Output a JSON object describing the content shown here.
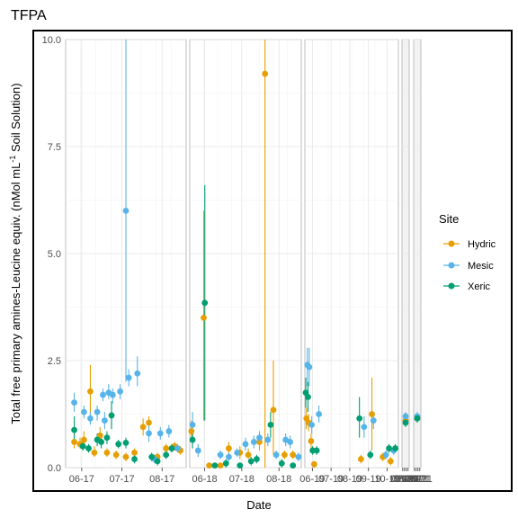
{
  "chart_data": {
    "type": "scatter",
    "title": "TFPA",
    "xlabel": "Date",
    "ylabel_main": "Total free primary amines-Leucine equiv. (nMol mL",
    "ylabel_sup": "-1",
    "ylabel_tail": " Soil Solution)",
    "ylim": [
      0,
      10
    ],
    "y_ticks": [
      "0.0",
      "2.5",
      "5.0",
      "7.5",
      "10.0"
    ],
    "grid": true,
    "legend": {
      "title": "Site",
      "placement": "right",
      "entries": [
        "Hydric",
        "Mesic",
        "Xeric"
      ]
    },
    "colors": {
      "Hydric": "#E69F00",
      "Mesic": "#56B4E9",
      "Xeric": "#009E73"
    },
    "panels": [
      {
        "x_ticks": [
          "06-17",
          "07-17",
          "08-17"
        ],
        "points": [
          {
            "series": "Hydric",
            "x": 0.15,
            "y": 0.6,
            "lo": 0.45,
            "hi": 0.8
          },
          {
            "series": "Hydric",
            "x": 0.25,
            "y": 0.55,
            "lo": 0.45,
            "hi": 0.7
          },
          {
            "series": "Hydric",
            "x": 0.32,
            "y": 0.65,
            "lo": 0.5,
            "hi": 0.85
          },
          {
            "series": "Hydric",
            "x": 0.43,
            "y": 1.78,
            "lo": 1.1,
            "hi": 2.4
          },
          {
            "series": "Hydric",
            "x": 0.5,
            "y": 0.35,
            "lo": 0.25,
            "hi": 0.5
          },
          {
            "series": "Hydric",
            "x": 0.6,
            "y": 0.75,
            "lo": 0.55,
            "hi": 0.95
          },
          {
            "series": "Hydric",
            "x": 0.72,
            "y": 0.35,
            "lo": 0.25,
            "hi": 0.45
          },
          {
            "series": "Hydric",
            "x": 0.88,
            "y": 0.3,
            "lo": 0.2,
            "hi": 0.4
          },
          {
            "series": "Hydric",
            "x": 1.05,
            "y": 0.25,
            "lo": 0.15,
            "hi": 0.35
          },
          {
            "series": "Hydric",
            "x": 1.2,
            "y": 0.35,
            "lo": 0.25,
            "hi": 0.45
          },
          {
            "series": "Hydric",
            "x": 1.35,
            "y": 0.95,
            "lo": 0.75,
            "hi": 1.15
          },
          {
            "series": "Hydric",
            "x": 1.45,
            "y": 1.05,
            "lo": 0.9,
            "hi": 1.2
          },
          {
            "series": "Hydric",
            "x": 1.6,
            "y": 0.25,
            "lo": 0.15,
            "hi": 0.35
          },
          {
            "series": "Hydric",
            "x": 1.75,
            "y": 0.45,
            "lo": 0.35,
            "hi": 0.55
          },
          {
            "series": "Hydric",
            "x": 1.9,
            "y": 0.5,
            "lo": 0.4,
            "hi": 0.6
          },
          {
            "series": "Hydric",
            "x": 2.0,
            "y": 0.4,
            "lo": 0.3,
            "hi": 0.5
          },
          {
            "series": "Mesic",
            "x": 0.15,
            "y": 1.52,
            "lo": 1.3,
            "hi": 1.75
          },
          {
            "series": "Mesic",
            "x": 0.32,
            "y": 1.3,
            "lo": 1.15,
            "hi": 1.45
          },
          {
            "series": "Mesic",
            "x": 0.43,
            "y": 1.15,
            "lo": 1.0,
            "hi": 1.3
          },
          {
            "series": "Mesic",
            "x": 0.55,
            "y": 1.3,
            "lo": 1.1,
            "hi": 1.45
          },
          {
            "series": "Mesic",
            "x": 0.65,
            "y": 1.7,
            "lo": 1.55,
            "hi": 1.85
          },
          {
            "series": "Mesic",
            "x": 0.68,
            "y": 1.1,
            "lo": 0.9,
            "hi": 1.3
          },
          {
            "series": "Mesic",
            "x": 0.75,
            "y": 1.75,
            "lo": 1.6,
            "hi": 1.95
          },
          {
            "series": "Mesic",
            "x": 0.82,
            "y": 1.7,
            "lo": 1.5,
            "hi": 1.85
          },
          {
            "series": "Mesic",
            "x": 0.95,
            "y": 1.78,
            "lo": 1.6,
            "hi": 1.95
          },
          {
            "series": "Mesic",
            "x": 1.05,
            "y": 6.0,
            "lo": 2.0,
            "hi": 10.0
          },
          {
            "series": "Mesic",
            "x": 1.1,
            "y": 2.1,
            "lo": 1.9,
            "hi": 2.3
          },
          {
            "series": "Mesic",
            "x": 1.25,
            "y": 2.2,
            "lo": 1.9,
            "hi": 2.6
          },
          {
            "series": "Mesic",
            "x": 1.45,
            "y": 0.8,
            "lo": 0.6,
            "hi": 1.0
          },
          {
            "series": "Mesic",
            "x": 1.55,
            "y": 0.2,
            "lo": 0.1,
            "hi": 0.3
          },
          {
            "series": "Mesic",
            "x": 1.65,
            "y": 0.8,
            "lo": 0.65,
            "hi": 0.95
          },
          {
            "series": "Mesic",
            "x": 1.8,
            "y": 0.85,
            "lo": 0.7,
            "hi": 1.0
          },
          {
            "series": "Mesic",
            "x": 1.95,
            "y": 0.45,
            "lo": 0.35,
            "hi": 0.55
          },
          {
            "series": "Xeric",
            "x": 0.15,
            "y": 0.88,
            "lo": 0.6,
            "hi": 1.2
          },
          {
            "series": "Xeric",
            "x": 0.3,
            "y": 0.5,
            "lo": 0.4,
            "hi": 0.6
          },
          {
            "series": "Xeric",
            "x": 0.4,
            "y": 0.45,
            "lo": 0.35,
            "hi": 0.55
          },
          {
            "series": "Xeric",
            "x": 0.55,
            "y": 0.65,
            "lo": 0.5,
            "hi": 0.8
          },
          {
            "series": "Xeric",
            "x": 0.62,
            "y": 0.6,
            "lo": 0.45,
            "hi": 0.75
          },
          {
            "series": "Xeric",
            "x": 0.72,
            "y": 0.7,
            "lo": 0.55,
            "hi": 0.85
          },
          {
            "series": "Xeric",
            "x": 0.8,
            "y": 1.22,
            "lo": 0.9,
            "hi": 1.55
          },
          {
            "series": "Xeric",
            "x": 0.92,
            "y": 0.55,
            "lo": 0.45,
            "hi": 0.65
          },
          {
            "series": "Xeric",
            "x": 1.05,
            "y": 0.58,
            "lo": 0.45,
            "hi": 0.7
          },
          {
            "series": "Xeric",
            "x": 1.2,
            "y": 0.2,
            "lo": 0.1,
            "hi": 0.3
          },
          {
            "series": "Xeric",
            "x": 1.5,
            "y": 0.25,
            "lo": 0.15,
            "hi": 0.35
          },
          {
            "series": "Xeric",
            "x": 1.6,
            "y": 0.15,
            "lo": 0.05,
            "hi": 0.25
          },
          {
            "series": "Xeric",
            "x": 1.75,
            "y": 0.3,
            "lo": 0.2,
            "hi": 0.4
          },
          {
            "series": "Xeric",
            "x": 1.85,
            "y": 0.45,
            "lo": 0.35,
            "hi": 0.55
          }
        ]
      },
      {
        "x_ticks": [
          "06-18",
          "07-18",
          "08-18"
        ],
        "points": [
          {
            "series": "Hydric",
            "x": 0.03,
            "y": 0.85,
            "lo": 0.6,
            "hi": 1.1
          },
          {
            "series": "Hydric",
            "x": 0.25,
            "y": 3.5,
            "lo": 1.1,
            "hi": 6.0
          },
          {
            "series": "Hydric",
            "x": 0.35,
            "y": 0.05,
            "lo": 0.0,
            "hi": 0.1
          },
          {
            "series": "Hydric",
            "x": 0.55,
            "y": 0.05,
            "lo": 0.0,
            "hi": 0.1
          },
          {
            "series": "Hydric",
            "x": 0.7,
            "y": 0.45,
            "lo": 0.3,
            "hi": 0.6
          },
          {
            "series": "Hydric",
            "x": 0.9,
            "y": 0.35,
            "lo": 0.2,
            "hi": 0.5
          },
          {
            "series": "Hydric",
            "x": 1.05,
            "y": 0.3,
            "lo": 0.2,
            "hi": 0.45
          },
          {
            "series": "Hydric",
            "x": 1.25,
            "y": 0.6,
            "lo": 0.4,
            "hi": 0.8
          },
          {
            "series": "Hydric",
            "x": 1.35,
            "y": 9.2,
            "lo": 0.0,
            "hi": 10.0
          },
          {
            "series": "Hydric",
            "x": 1.5,
            "y": 1.35,
            "lo": 0.3,
            "hi": 2.5
          },
          {
            "series": "Hydric",
            "x": 1.7,
            "y": 0.3,
            "lo": 0.2,
            "hi": 0.4
          },
          {
            "series": "Hydric",
            "x": 1.85,
            "y": 0.3,
            "lo": 0.2,
            "hi": 0.4
          },
          {
            "series": "Mesic",
            "x": 0.05,
            "y": 1.0,
            "lo": 0.7,
            "hi": 1.3
          },
          {
            "series": "Mesic",
            "x": 0.15,
            "y": 0.4,
            "lo": 0.25,
            "hi": 0.55
          },
          {
            "series": "Mesic",
            "x": 0.55,
            "y": 0.3,
            "lo": 0.2,
            "hi": 0.4
          },
          {
            "series": "Mesic",
            "x": 0.7,
            "y": 0.25,
            "lo": 0.15,
            "hi": 0.35
          },
          {
            "series": "Mesic",
            "x": 0.85,
            "y": 0.35,
            "lo": 0.25,
            "hi": 0.45
          },
          {
            "series": "Mesic",
            "x": 1.0,
            "y": 0.55,
            "lo": 0.4,
            "hi": 0.7
          },
          {
            "series": "Mesic",
            "x": 1.15,
            "y": 0.6,
            "lo": 0.45,
            "hi": 0.75
          },
          {
            "series": "Mesic",
            "x": 1.25,
            "y": 0.7,
            "lo": 0.55,
            "hi": 0.85
          },
          {
            "series": "Mesic",
            "x": 1.4,
            "y": 0.65,
            "lo": 0.5,
            "hi": 0.8
          },
          {
            "series": "Mesic",
            "x": 1.55,
            "y": 0.3,
            "lo": 0.2,
            "hi": 0.4
          },
          {
            "series": "Mesic",
            "x": 1.72,
            "y": 0.65,
            "lo": 0.5,
            "hi": 0.8
          },
          {
            "series": "Mesic",
            "x": 1.8,
            "y": 0.6,
            "lo": 0.45,
            "hi": 0.75
          },
          {
            "series": "Mesic",
            "x": 1.95,
            "y": 0.25,
            "lo": 0.15,
            "hi": 0.35
          },
          {
            "series": "Xeric",
            "x": 0.05,
            "y": 0.65,
            "lo": 0.45,
            "hi": 0.85
          },
          {
            "series": "Xeric",
            "x": 0.27,
            "y": 3.85,
            "lo": 1.1,
            "hi": 6.6
          },
          {
            "series": "Xeric",
            "x": 0.45,
            "y": 0.05,
            "lo": 0.0,
            "hi": 0.1
          },
          {
            "series": "Xeric",
            "x": 0.65,
            "y": 0.1,
            "lo": 0.0,
            "hi": 0.2
          },
          {
            "series": "Xeric",
            "x": 0.9,
            "y": 0.05,
            "lo": 0.0,
            "hi": 0.1
          },
          {
            "series": "Xeric",
            "x": 1.1,
            "y": 0.15,
            "lo": 0.05,
            "hi": 0.25
          },
          {
            "series": "Xeric",
            "x": 1.2,
            "y": 0.2,
            "lo": 0.1,
            "hi": 0.3
          },
          {
            "series": "Xeric",
            "x": 1.45,
            "y": 1.0,
            "lo": 0.7,
            "hi": 1.3
          },
          {
            "series": "Xeric",
            "x": 1.65,
            "y": 0.1,
            "lo": 0.0,
            "hi": 0.2
          },
          {
            "series": "Xeric",
            "x": 1.85,
            "y": 0.05,
            "lo": 0.0,
            "hi": 0.1
          }
        ]
      },
      {
        "x_ticks": [
          "06-19",
          "07-19",
          "08-19",
          "09-19",
          "10-19"
        ],
        "points": [
          {
            "series": "Hydric",
            "x": 0.05,
            "y": 1.15,
            "lo": 0.9,
            "hi": 1.4
          },
          {
            "series": "Hydric",
            "x": 0.12,
            "y": 1.05,
            "lo": 0.85,
            "hi": 1.25
          },
          {
            "series": "Hydric",
            "x": 0.2,
            "y": 0.62,
            "lo": 0.45,
            "hi": 0.8
          },
          {
            "series": "Hydric",
            "x": 0.3,
            "y": 0.08,
            "lo": 0.0,
            "hi": 0.15
          },
          {
            "series": "Hydric",
            "x": 1.8,
            "y": 0.2,
            "lo": 0.1,
            "hi": 0.3
          },
          {
            "series": "Hydric",
            "x": 2.15,
            "y": 1.25,
            "lo": 0.4,
            "hi": 2.1
          },
          {
            "series": "Hydric",
            "x": 2.5,
            "y": 0.25,
            "lo": 0.15,
            "hi": 0.35
          },
          {
            "series": "Hydric",
            "x": 2.75,
            "y": 0.15,
            "lo": 0.05,
            "hi": 0.25
          },
          {
            "series": "Mesic",
            "x": 0.08,
            "y": 2.4,
            "lo": 1.9,
            "hi": 2.8
          },
          {
            "series": "Mesic",
            "x": 0.14,
            "y": 2.35,
            "lo": 1.9,
            "hi": 2.8
          },
          {
            "series": "Mesic",
            "x": 0.22,
            "y": 1.0,
            "lo": 0.8,
            "hi": 1.2
          },
          {
            "series": "Mesic",
            "x": 0.45,
            "y": 1.25,
            "lo": 1.05,
            "hi": 1.45
          },
          {
            "series": "Mesic",
            "x": 1.9,
            "y": 0.95,
            "lo": 0.7,
            "hi": 1.2
          },
          {
            "series": "Mesic",
            "x": 2.2,
            "y": 1.1,
            "lo": 0.9,
            "hi": 1.3
          },
          {
            "series": "Mesic",
            "x": 2.6,
            "y": 0.3,
            "lo": 0.2,
            "hi": 0.4
          },
          {
            "series": "Mesic",
            "x": 2.85,
            "y": 0.4,
            "lo": 0.3,
            "hi": 0.5
          },
          {
            "series": "Xeric",
            "x": 0.03,
            "y": 1.75,
            "lo": 1.4,
            "hi": 2.1
          },
          {
            "series": "Xeric",
            "x": 0.1,
            "y": 1.65,
            "lo": 1.3,
            "hi": 2.0
          },
          {
            "series": "Xeric",
            "x": 0.25,
            "y": 0.4,
            "lo": 0.3,
            "hi": 0.5
          },
          {
            "series": "Xeric",
            "x": 0.38,
            "y": 0.4,
            "lo": 0.3,
            "hi": 0.5
          },
          {
            "series": "Xeric",
            "x": 1.75,
            "y": 1.15,
            "lo": 0.7,
            "hi": 1.65
          },
          {
            "series": "Xeric",
            "x": 2.1,
            "y": 0.3,
            "lo": 0.2,
            "hi": 0.4
          },
          {
            "series": "Xeric",
            "x": 2.7,
            "y": 0.45,
            "lo": 0.35,
            "hi": 0.55
          },
          {
            "series": "Xeric",
            "x": 2.9,
            "y": 0.45,
            "lo": 0.35,
            "hi": 0.55
          }
        ]
      },
      {
        "x_ticks": [
          "06-20",
          "07-20",
          "08-20",
          "09-20"
        ],
        "points": [
          {
            "series": "Hydric",
            "x": 1.5,
            "y": 1.1,
            "lo": 1.0,
            "hi": 1.2
          },
          {
            "series": "Mesic",
            "x": 1.5,
            "y": 1.2,
            "lo": 1.1,
            "hi": 1.3
          },
          {
            "series": "Xeric",
            "x": 1.5,
            "y": 1.05,
            "lo": 0.95,
            "hi": 1.15
          }
        ]
      },
      {
        "x_ticks": [
          "06-21",
          "07-21",
          "08-21",
          "09-21"
        ],
        "points": [
          {
            "series": "Hydric",
            "x": 1.5,
            "y": 1.15,
            "lo": 1.05,
            "hi": 1.25
          },
          {
            "series": "Mesic",
            "x": 1.5,
            "y": 1.2,
            "lo": 1.1,
            "hi": 1.3
          },
          {
            "series": "Xeric",
            "x": 1.5,
            "y": 1.15,
            "lo": 1.05,
            "hi": 1.25
          }
        ]
      }
    ]
  }
}
